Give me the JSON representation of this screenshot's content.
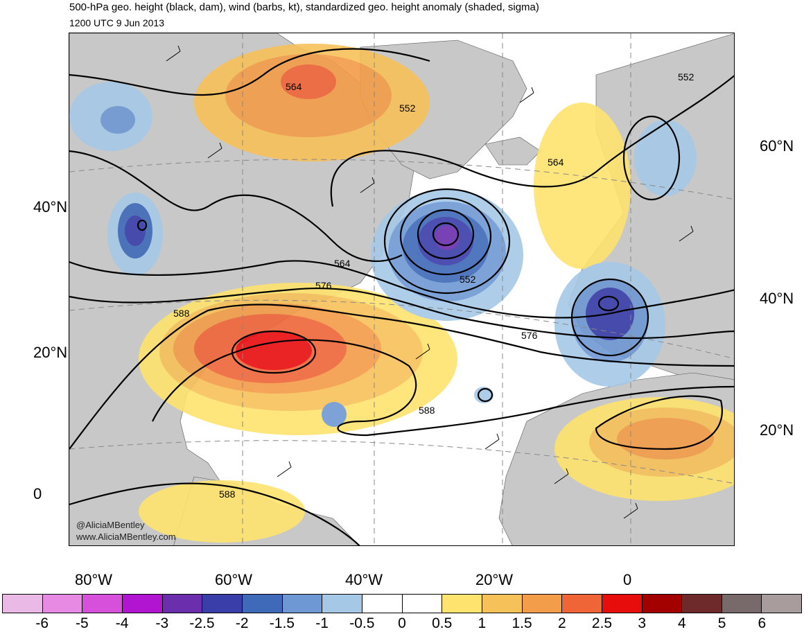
{
  "title": "500-hPa geo. height (black, dam), wind (barbs, kt), standardized geo. height anomaly (shaded, sigma)",
  "subtitle": "1200 UTC 9 Jun 2013",
  "credits": [
    "@AliciaMBentley",
    "www.AliciaMBentley.com"
  ],
  "axes": {
    "left_lat_labels": [
      "40°N",
      "20°N",
      "0"
    ],
    "right_lat_labels": [
      "60°N",
      "40°N",
      "20°N"
    ],
    "lon_labels": [
      "80°W",
      "60°W",
      "40°W",
      "20°W",
      "0"
    ]
  },
  "contour_labels": [
    "564",
    "552",
    "564",
    "552",
    "564",
    "576",
    "552",
    "588",
    "576",
    "588",
    "588"
  ],
  "colorbar": {
    "colors": [
      "#ebb9e6",
      "#e78ae4",
      "#d750dc",
      "#b215d2",
      "#6b2eac",
      "#3a3ea8",
      "#3f6ab9",
      "#6e98d3",
      "#a6c8e7",
      "#ffffff",
      "#ffffff",
      "#fee36e",
      "#f7c15a",
      "#f39c49",
      "#ef6538",
      "#e80d0d",
      "#a30000",
      "#6e2a2a",
      "#786a6a",
      "#a89c9c"
    ],
    "tick_labels": [
      "-6",
      "-5",
      "-4",
      "-3",
      "-2.5",
      "-2",
      "-1.5",
      "-1",
      "-0.5",
      "0",
      "0.5",
      "1",
      "1.5",
      "2",
      "2.5",
      "3",
      "4",
      "5",
      "6"
    ]
  }
}
